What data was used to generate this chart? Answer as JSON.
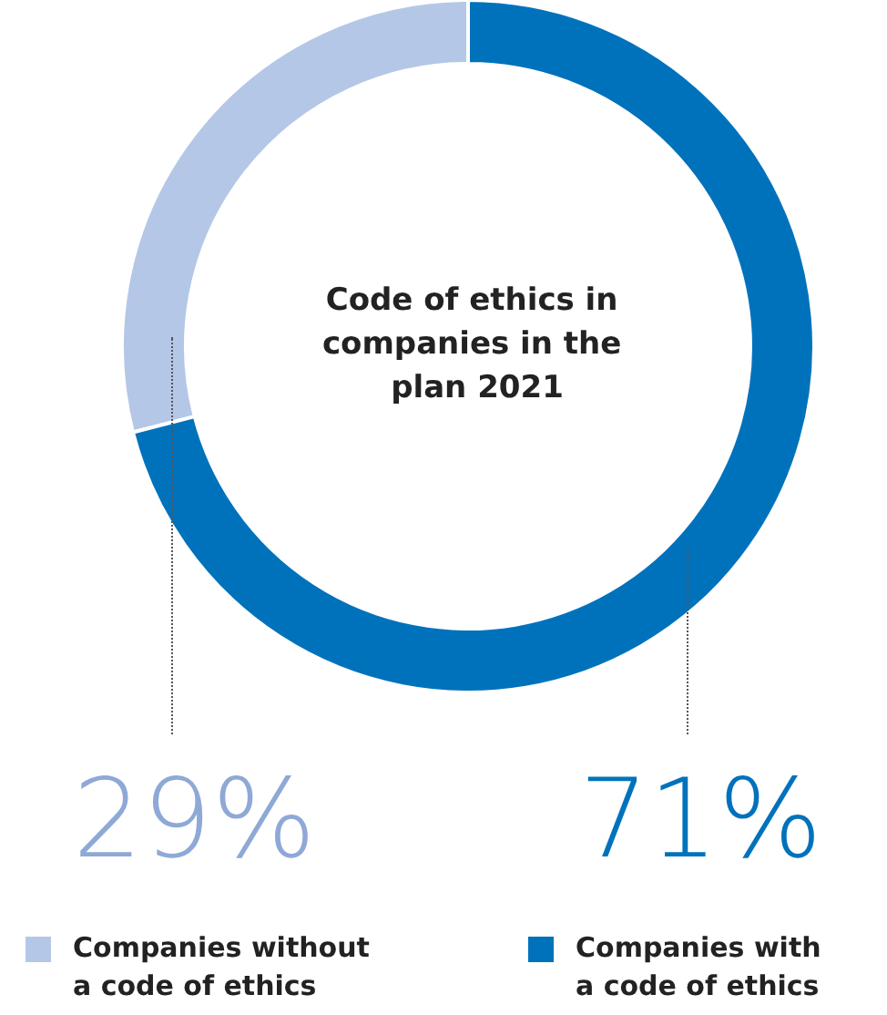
{
  "chart_data": {
    "type": "donut",
    "title": "Code of ethics in companies in the plan 2021",
    "categories": [
      "Companies without a code of ethics",
      "Companies with a code of ethics"
    ],
    "values": [
      29,
      71
    ],
    "colors": [
      "#b4c7e7",
      "#0072bc"
    ],
    "value_labels": [
      "29%",
      "71%"
    ],
    "legend": "bottom"
  }
}
